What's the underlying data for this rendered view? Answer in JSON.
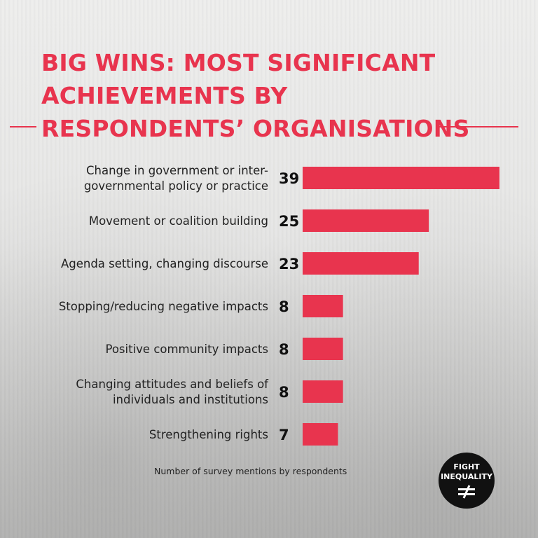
{
  "title_lines": [
    "BIG WINS: MOST SIGNIFICANT",
    "ACHIEVEMENTS BY",
    "RESPONDENTS’ ORGANISATIONS"
  ],
  "colors": {
    "accent": "#e8344e",
    "badge": "#111111",
    "text": "#222222"
  },
  "chart_data": {
    "type": "bar",
    "orientation": "horizontal",
    "title": "BIG WINS: MOST SIGNIFICANT ACHIEVEMENTS BY RESPONDENTS’ ORGANISATIONS",
    "categories": [
      [
        "Change in government or inter-",
        "governmental policy or practice"
      ],
      [
        "Movement or coalition building"
      ],
      [
        "Agenda setting, changing discourse"
      ],
      [
        "Stopping/reducing negative impacts"
      ],
      [
        "Positive community impacts"
      ],
      [
        "Changing attitudes and beliefs of",
        "individuals and institutions"
      ],
      [
        "Strengthening rights"
      ]
    ],
    "values": [
      39,
      25,
      23,
      8,
      8,
      8,
      7
    ],
    "xlabel": "Number of survey mentions by respondents",
    "xlim": [
      0,
      39
    ],
    "grid": false,
    "data_labels": true
  },
  "badge": {
    "line1": "FIGHT",
    "line2": "INEQUALITY",
    "icon": "not-equal-icon"
  }
}
